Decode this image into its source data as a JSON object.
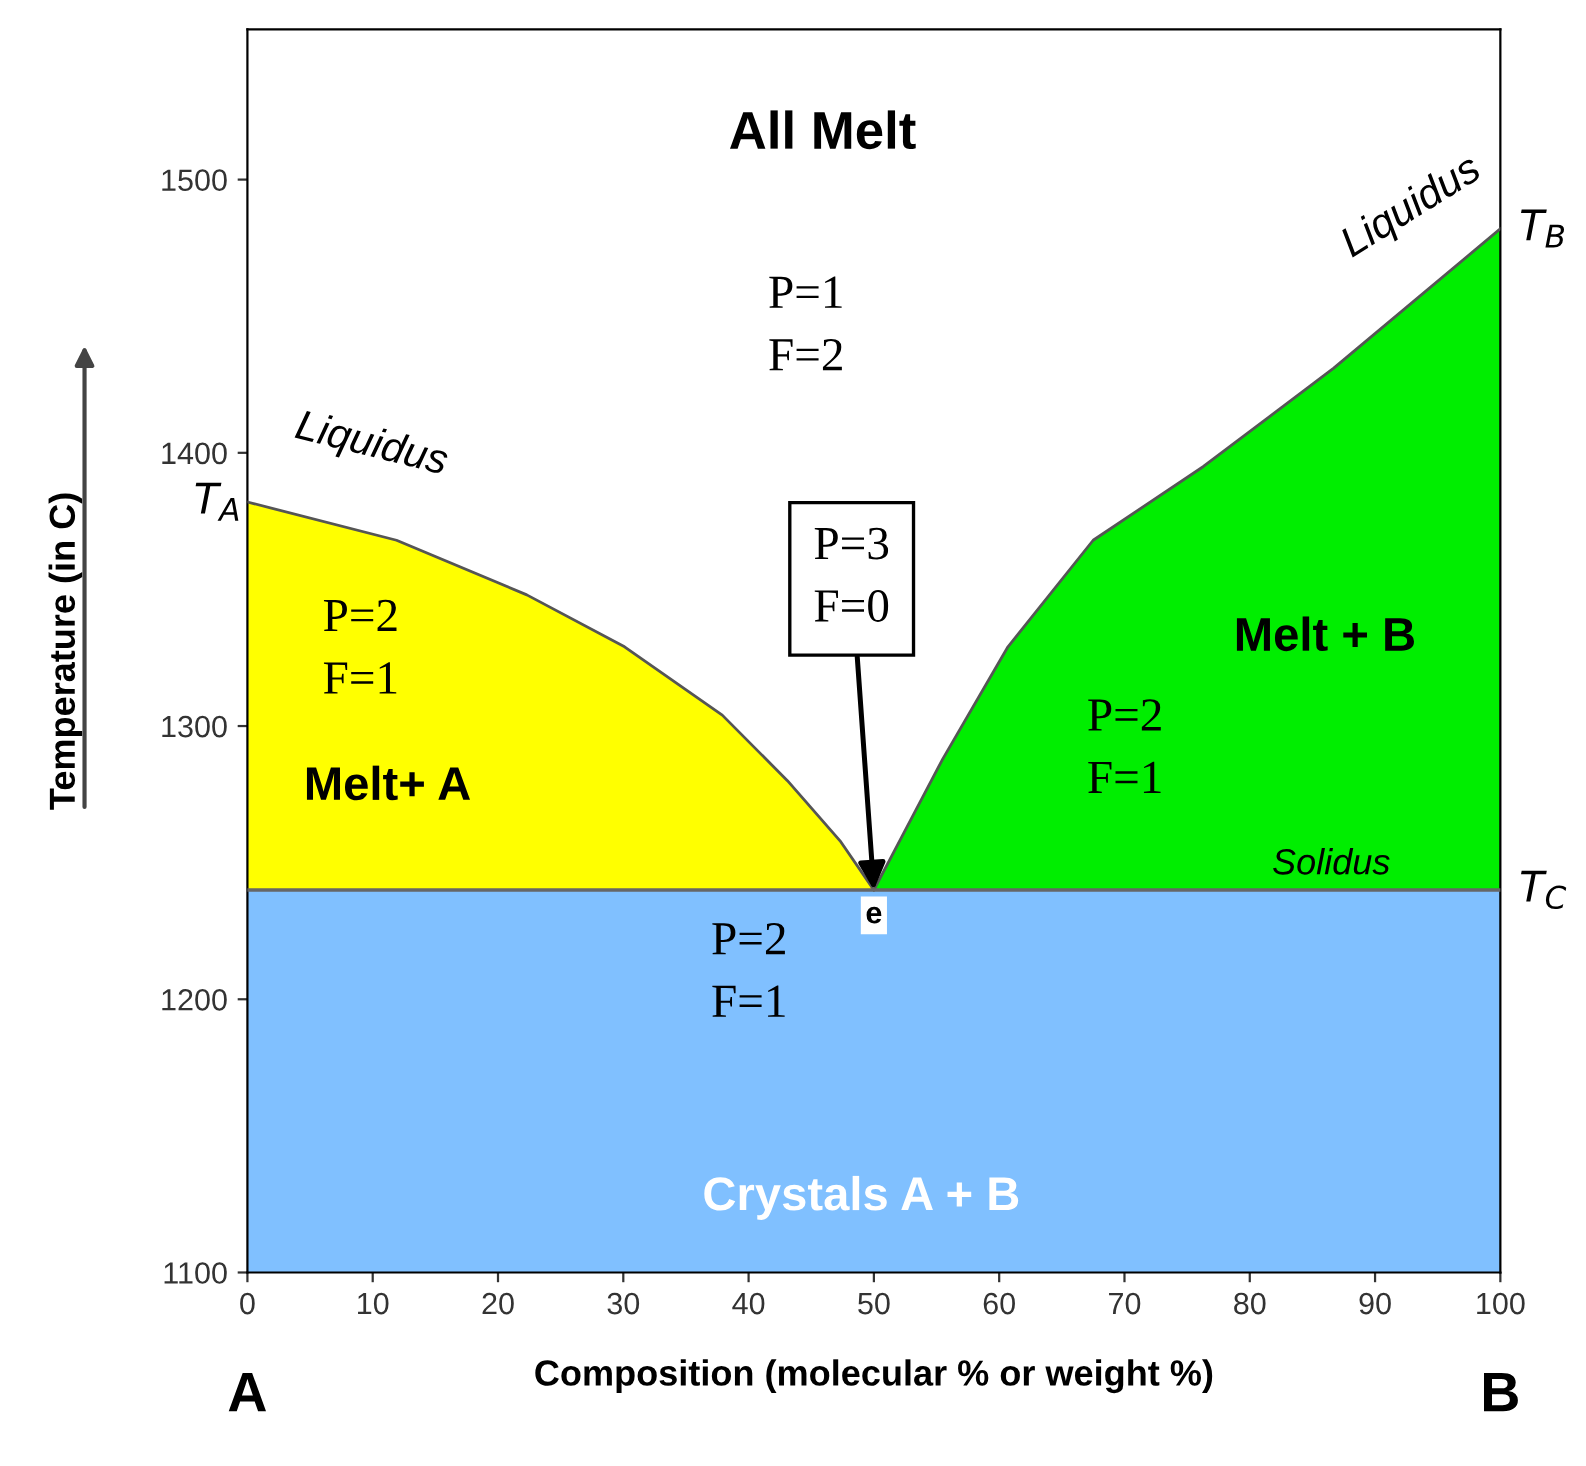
{
  "chart_data": {
    "type": "area",
    "xlabel": "Composition (molecular % or weight %)",
    "ylabel": "Temperature (in C)",
    "xlim": [
      0,
      100
    ],
    "xticks": [
      0,
      10,
      20,
      30,
      40,
      50,
      60,
      70,
      80,
      90,
      100
    ],
    "ylim": [
      1100,
      1555
    ],
    "yticks": [
      1100,
      1200,
      1300,
      1400,
      1500
    ],
    "grid": false,
    "series": [
      {
        "color": "#ffff00",
        "x": [
          0,
          11.9,
          22.3,
          30.1,
          37.9,
          43.1,
          47.3,
          50
        ],
        "values": [
          1382,
          1368,
          1348,
          1329,
          1304,
          1280,
          1258,
          1240
        ]
      },
      {
        "color": "#00ee00",
        "x": [
          50,
          55.5,
          60.7,
          67.5,
          76.3,
          86.7,
          100
        ],
        "values": [
          1240,
          1288,
          1329,
          1368,
          1395,
          1431,
          1482
        ]
      }
    ],
    "bands": [
      {
        "axis": "y",
        "from": 1100,
        "to": 1240,
        "color": "#80c0ff"
      }
    ],
    "ref_lines": [
      {
        "axis": "y",
        "value": 1240,
        "label": "Solidus",
        "color": "#666666"
      }
    ],
    "annotations": [
      "All Melt",
      "P=1\nF=2",
      "Liquidus",
      "Liquidus",
      {
        "text": "T$_{A}$",
        "x": 0,
        "y": 1382
      },
      {
        "text": "T$_{B}$",
        "x": 100,
        "y": 1482
      },
      {
        "text": "T$_{C}$",
        "x": 100,
        "y": 1240
      },
      "P=2\nF=1",
      "Melt+ A",
      {
        "text": "P=3\nF=0",
        "x": 50,
        "y": 1240
      },
      "Melt + B",
      "P=2\nF=1",
      {
        "text": "e",
        "x": 50,
        "y": 1240
      },
      "P=2\nF=1",
      "Crystals A + B",
      "A",
      "B"
    ]
  }
}
